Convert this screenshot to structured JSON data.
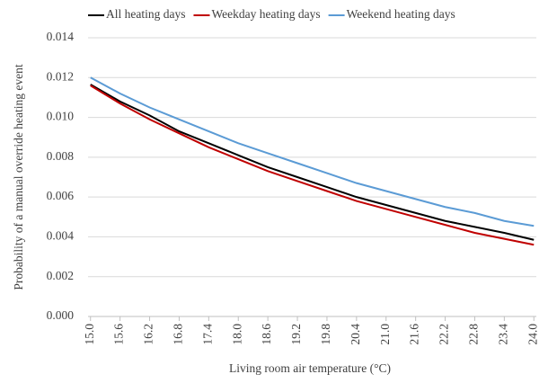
{
  "chart_data": {
    "type": "line",
    "x_label": "Living room air temperature (°C)",
    "y_label": "Probability of a manual override heating event",
    "x": [
      15.0,
      15.6,
      16.2,
      16.8,
      17.4,
      18.0,
      18.6,
      19.2,
      19.8,
      20.4,
      21.0,
      21.6,
      22.2,
      22.8,
      23.4,
      24.0
    ],
    "series": [
      {
        "name": "All heating days",
        "color": "#000000",
        "values": [
          0.01165,
          0.0108,
          0.0101,
          0.0093,
          0.0087,
          0.0081,
          0.0075,
          0.007,
          0.0065,
          0.006,
          0.0056,
          0.0052,
          0.0048,
          0.0045,
          0.0042,
          0.00385
        ]
      },
      {
        "name": "Weekday heating days",
        "color": "#c00000",
        "values": [
          0.0116,
          0.0107,
          0.0099,
          0.0092,
          0.0085,
          0.0079,
          0.0073,
          0.0068,
          0.0063,
          0.0058,
          0.0054,
          0.005,
          0.0046,
          0.0042,
          0.0039,
          0.0036
        ]
      },
      {
        "name": "Weekend heating days",
        "color": "#5b9bd5",
        "values": [
          0.012,
          0.0112,
          0.0105,
          0.0099,
          0.0093,
          0.0087,
          0.0082,
          0.0077,
          0.0072,
          0.0067,
          0.0063,
          0.0059,
          0.0055,
          0.0052,
          0.0048,
          0.00455
        ]
      }
    ],
    "xlim": [
      14.95,
      24.05
    ],
    "xticks": [
      {
        "value": 15,
        "label": "15.0"
      },
      15.6,
      16.2,
      16.8,
      17.4,
      {
        "value": 18,
        "label": "18.0"
      },
      18.6,
      19.2,
      19.8,
      20.4,
      {
        "value": 21,
        "label": "21.0"
      },
      21.6,
      22.2,
      22.8,
      23.4,
      {
        "value": 24,
        "label": "24.0"
      }
    ],
    "ylim": [
      0,
      0.014
    ],
    "yticks": [
      {
        "value": 0,
        "label": "0.000"
      },
      {
        "value": 0.002,
        "label": "0.002"
      },
      {
        "value": 0.004,
        "label": "0.004"
      },
      {
        "value": 0.006,
        "label": "0.006"
      },
      {
        "value": 0.008,
        "label": "0.008"
      },
      {
        "value": 0.01,
        "label": "0.010"
      },
      {
        "value": 0.012,
        "label": "0.012"
      },
      {
        "value": 0.014,
        "label": "0.014"
      }
    ],
    "grid": true,
    "legend": "top"
  }
}
